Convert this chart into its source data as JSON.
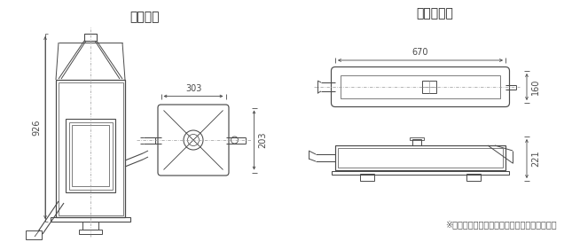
{
  "title_left": "流動層型",
  "title_right": "トンネル型",
  "note": "※寸法などはニーズに合わせて設計致します。",
  "dim_926": "926",
  "dim_303": "303",
  "dim_203": "203",
  "dim_670": "670",
  "dim_160": "160",
  "dim_221": "221",
  "line_color": "#4a4a4a",
  "dim_color": "#4a4a4a",
  "bg_color": "#ffffff",
  "centerline_color": "#999999",
  "title_fontsize": 10,
  "note_fontsize": 7,
  "dim_fontsize": 7
}
